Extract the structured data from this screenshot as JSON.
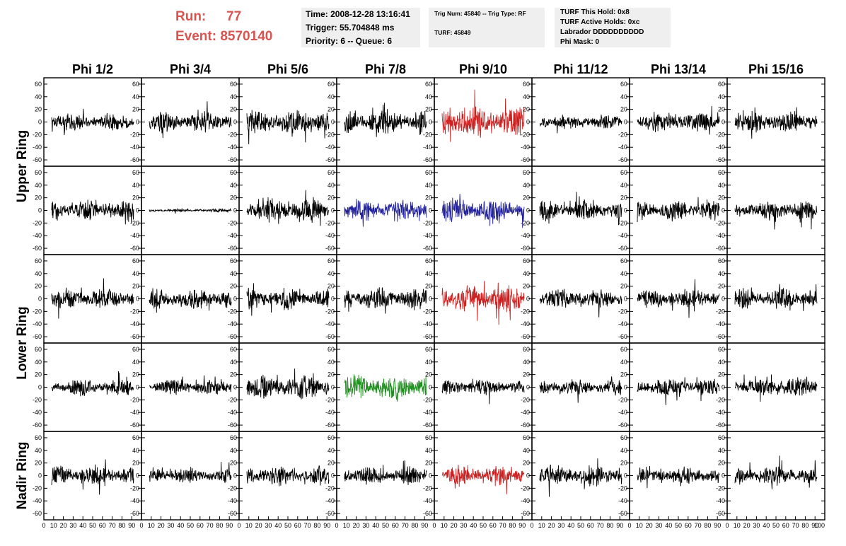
{
  "header": {
    "run_label": "Run:",
    "run_value": "77",
    "event_label": "Event:",
    "event_value": "8570140",
    "time": "Time: 2008-12-28 13:16:41",
    "trigger": "Trigger: 55.704848 ms",
    "priority": "Priority: 6 -- Queue: 6",
    "trig_num": "Trig Num: 45840 -- Trig Type: RF",
    "turf": "TURF: 45849",
    "turf_this_hold": "TURF This Hold: 0x8",
    "turf_active_holds": "TURF Active Holds: 0xc",
    "labrador": "Labrador DDDDDDDDDD",
    "phi_mask": "Phi Mask: 0"
  },
  "chart_data": {
    "type": "line",
    "title": "",
    "columns": [
      "Phi 1/2",
      "Phi 3/4",
      "Phi 5/6",
      "Phi 7/8",
      "Phi 9/10",
      "Phi 11/12",
      "Phi 13/14",
      "Phi 15/16"
    ],
    "rows": [
      "Upper Ring",
      "Upper Ring",
      "Lower Ring",
      "Lower Ring",
      "Nadir Ring"
    ],
    "row_group_labels": [
      "Upper Ring",
      "Lower Ring",
      "Nadir Ring"
    ],
    "xlim": [
      0,
      100
    ],
    "ylim": [
      -70,
      70
    ],
    "xticks": [
      0,
      10,
      20,
      30,
      40,
      50,
      60,
      70,
      80,
      90,
      100
    ],
    "xtick_labels": [
      "0",
      "10",
      "20",
      "30",
      "40",
      "50",
      "60",
      "70",
      "80",
      "90",
      "100"
    ],
    "yticks": [
      -60,
      -40,
      -20,
      0,
      20,
      40,
      60
    ],
    "ytick_labels": [
      "-60",
      "-40",
      "-20",
      "0",
      "20",
      "40",
      "60"
    ],
    "n_samples": 260,
    "panels": [
      [
        {
          "color": "#000000",
          "amp": 13,
          "seed": 11
        },
        {
          "color": "#000000",
          "amp": 14,
          "seed": 12
        },
        {
          "color": "#000000",
          "amp": 18,
          "seed": 13
        },
        {
          "color": "#000000",
          "amp": 17,
          "seed": 14
        },
        {
          "color": "#cc2222",
          "amp": 22,
          "seed": 15
        },
        {
          "color": "#000000",
          "amp": 11,
          "seed": 16
        },
        {
          "color": "#000000",
          "amp": 14,
          "seed": 17
        },
        {
          "color": "#000000",
          "amp": 15,
          "seed": 18
        }
      ],
      [
        {
          "color": "#000000",
          "amp": 14,
          "seed": 21
        },
        {
          "color": "#000000",
          "amp": 2,
          "seed": 22
        },
        {
          "color": "#000000",
          "amp": 17,
          "seed": 23
        },
        {
          "color": "#22229a",
          "amp": 16,
          "seed": 24
        },
        {
          "color": "#22229a",
          "amp": 18,
          "seed": 25
        },
        {
          "color": "#000000",
          "amp": 14,
          "seed": 26
        },
        {
          "color": "#000000",
          "amp": 14,
          "seed": 27
        },
        {
          "color": "#000000",
          "amp": 14,
          "seed": 28
        }
      ],
      [
        {
          "color": "#000000",
          "amp": 15,
          "seed": 31
        },
        {
          "color": "#000000",
          "amp": 14,
          "seed": 32
        },
        {
          "color": "#000000",
          "amp": 15,
          "seed": 33
        },
        {
          "color": "#000000",
          "amp": 15,
          "seed": 34
        },
        {
          "color": "#cc2222",
          "amp": 20,
          "seed": 35
        },
        {
          "color": "#000000",
          "amp": 13,
          "seed": 36
        },
        {
          "color": "#000000",
          "amp": 14,
          "seed": 37
        },
        {
          "color": "#000000",
          "amp": 14,
          "seed": 38
        }
      ],
      [
        {
          "color": "#000000",
          "amp": 11,
          "seed": 41
        },
        {
          "color": "#000000",
          "amp": 11,
          "seed": 42
        },
        {
          "color": "#000000",
          "amp": 17,
          "seed": 43
        },
        {
          "color": "#1f8f1f",
          "amp": 18,
          "seed": 44
        },
        {
          "color": "#000000",
          "amp": 11,
          "seed": 45
        },
        {
          "color": "#000000",
          "amp": 11,
          "seed": 46
        },
        {
          "color": "#000000",
          "amp": 12,
          "seed": 47
        },
        {
          "color": "#000000",
          "amp": 13,
          "seed": 48
        }
      ],
      [
        {
          "color": "#000000",
          "amp": 14,
          "seed": 51
        },
        {
          "color": "#000000",
          "amp": 11,
          "seed": 52
        },
        {
          "color": "#000000",
          "amp": 14,
          "seed": 53
        },
        {
          "color": "#000000",
          "amp": 13,
          "seed": 54
        },
        {
          "color": "#cc2222",
          "amp": 15,
          "seed": 55
        },
        {
          "color": "#000000",
          "amp": 15,
          "seed": 56
        },
        {
          "color": "#000000",
          "amp": 12,
          "seed": 57
        },
        {
          "color": "#000000",
          "amp": 13,
          "seed": 58
        }
      ]
    ]
  }
}
